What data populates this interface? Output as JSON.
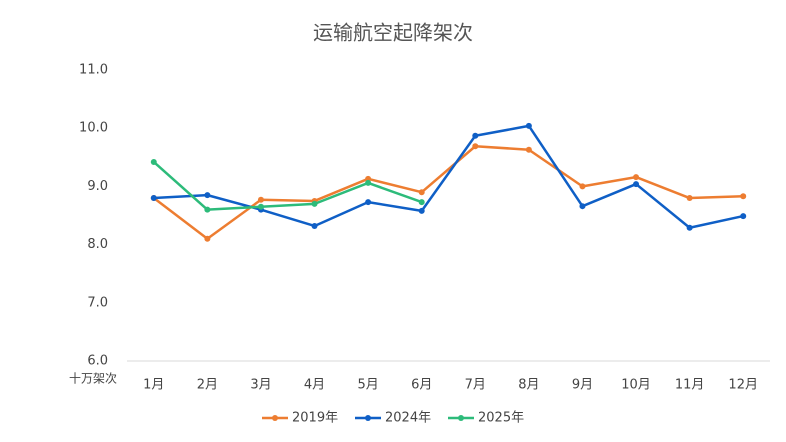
{
  "chart_data": {
    "type": "line",
    "title": "运输航空起降架次",
    "y_unit_label": "十万架次",
    "categories": [
      "1月",
      "2月",
      "3月",
      "4月",
      "5月",
      "6月",
      "7月",
      "8月",
      "9月",
      "10月",
      "11月",
      "12月"
    ],
    "series": [
      {
        "name": "2019年",
        "color": "#ed7d31",
        "values": [
          8.8,
          8.1,
          8.77,
          8.75,
          9.13,
          8.9,
          9.69,
          9.63,
          9.0,
          9.16,
          8.8,
          8.83
        ]
      },
      {
        "name": "2024年",
        "color": "#0f5fc6",
        "values": [
          8.8,
          8.85,
          8.6,
          8.32,
          8.73,
          8.58,
          9.87,
          10.04,
          8.66,
          9.04,
          8.29,
          8.49
        ]
      },
      {
        "name": "2025年",
        "color": "#2dbb7a",
        "values": [
          9.42,
          8.6,
          8.65,
          8.7,
          9.06,
          8.73,
          null,
          null,
          null,
          null,
          null,
          null
        ]
      }
    ],
    "ylim": [
      6,
      11
    ],
    "yticks": [
      {
        "value": 6,
        "label": "6.0"
      },
      {
        "value": 7,
        "label": "7.0"
      },
      {
        "value": 8,
        "label": "8.0"
      },
      {
        "value": 9,
        "label": "9.0"
      },
      {
        "value": 10,
        "label": "10.0"
      },
      {
        "value": 11,
        "label": "11.0"
      }
    ],
    "grid": false,
    "legend": "bottom"
  }
}
